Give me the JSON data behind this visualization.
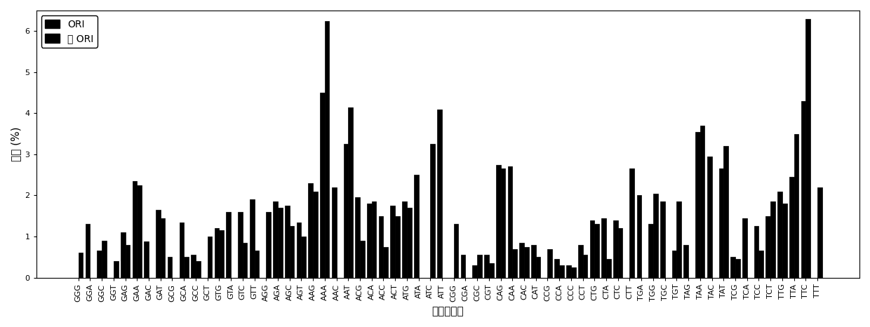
{
  "categories": [
    "GGG",
    "GGA",
    "GGC",
    "GGT",
    "GAG",
    "GAA",
    "GAC",
    "GAT",
    "GCG",
    "GCA",
    "GCC",
    "GCT",
    "GTG",
    "GTA",
    "GTC",
    "GTT",
    "AGG",
    "AGA",
    "AGC",
    "AGT",
    "AAG",
    "AAA",
    "AAC",
    "AAT",
    "ACG",
    "ACA",
    "ACC",
    "ACT",
    "ATG",
    "ATA",
    "ATC",
    "ATT",
    "CGG",
    "CGA",
    "CGC",
    "CGT",
    "CAG",
    "CAA",
    "CAC",
    "CAT",
    "CCG",
    "CCA",
    "CCC",
    "CCT",
    "CTG",
    "CTA",
    "CTC",
    "CTT",
    "TGA",
    "TGG",
    "TGC",
    "TGT",
    "TAG",
    "TAA",
    "TAC",
    "TAT",
    "TCG",
    "TCA",
    "TCC",
    "TCT",
    "TTG",
    "TTA",
    "TTC",
    "TTT"
  ],
  "ori_values": [
    0.0,
    1.3,
    0.65,
    0.0,
    1.1,
    2.35,
    0.88,
    1.65,
    0.5,
    1.35,
    0.55,
    0.0,
    1.2,
    1.6,
    1.6,
    1.9,
    0.0,
    1.85,
    1.75,
    1.35,
    2.3,
    4.5,
    2.2,
    3.25,
    1.95,
    1.8,
    1.5,
    1.75,
    1.85,
    2.5,
    0.0,
    4.1,
    0.0,
    0.55,
    0.3,
    0.55,
    2.75,
    2.7,
    0.85,
    0.8,
    0.0,
    0.45,
    0.3,
    0.8,
    1.4,
    1.45,
    1.4,
    0.0,
    2.0,
    1.3,
    1.85,
    0.65,
    0.8,
    3.55,
    2.95,
    2.65,
    0.5,
    1.45,
    1.25,
    1.5,
    2.1,
    2.45,
    4.3,
    0.0
  ],
  "nonori_values": [
    0.6,
    0.0,
    0.9,
    0.4,
    0.8,
    2.25,
    0.0,
    1.45,
    0.0,
    0.5,
    0.4,
    1.0,
    1.15,
    0.0,
    0.85,
    0.65,
    1.6,
    1.7,
    1.25,
    1.0,
    2.1,
    6.25,
    0.0,
    4.15,
    0.9,
    1.85,
    0.75,
    1.5,
    1.7,
    0.0,
    3.25,
    0.0,
    1.3,
    0.0,
    0.55,
    0.35,
    2.65,
    0.7,
    0.75,
    0.5,
    0.7,
    0.3,
    0.25,
    0.55,
    1.3,
    0.45,
    1.2,
    2.65,
    0.0,
    2.05,
    0.0,
    1.85,
    0.0,
    3.7,
    0.0,
    3.2,
    0.45,
    0.0,
    0.65,
    1.85,
    1.8,
    3.5,
    6.3,
    2.2
  ],
  "ylabel": "频率 (%)",
  "xlabel": "三联核苷酸",
  "ylim": [
    0,
    6.5
  ],
  "yticks": [
    0,
    1,
    2,
    3,
    4,
    5,
    6
  ],
  "legend_label_ori": "ORI",
  "legend_label_nonori": "非 ORI",
  "bar_width": 0.4,
  "figsize": [
    12.4,
    4.66
  ],
  "dpi": 100
}
